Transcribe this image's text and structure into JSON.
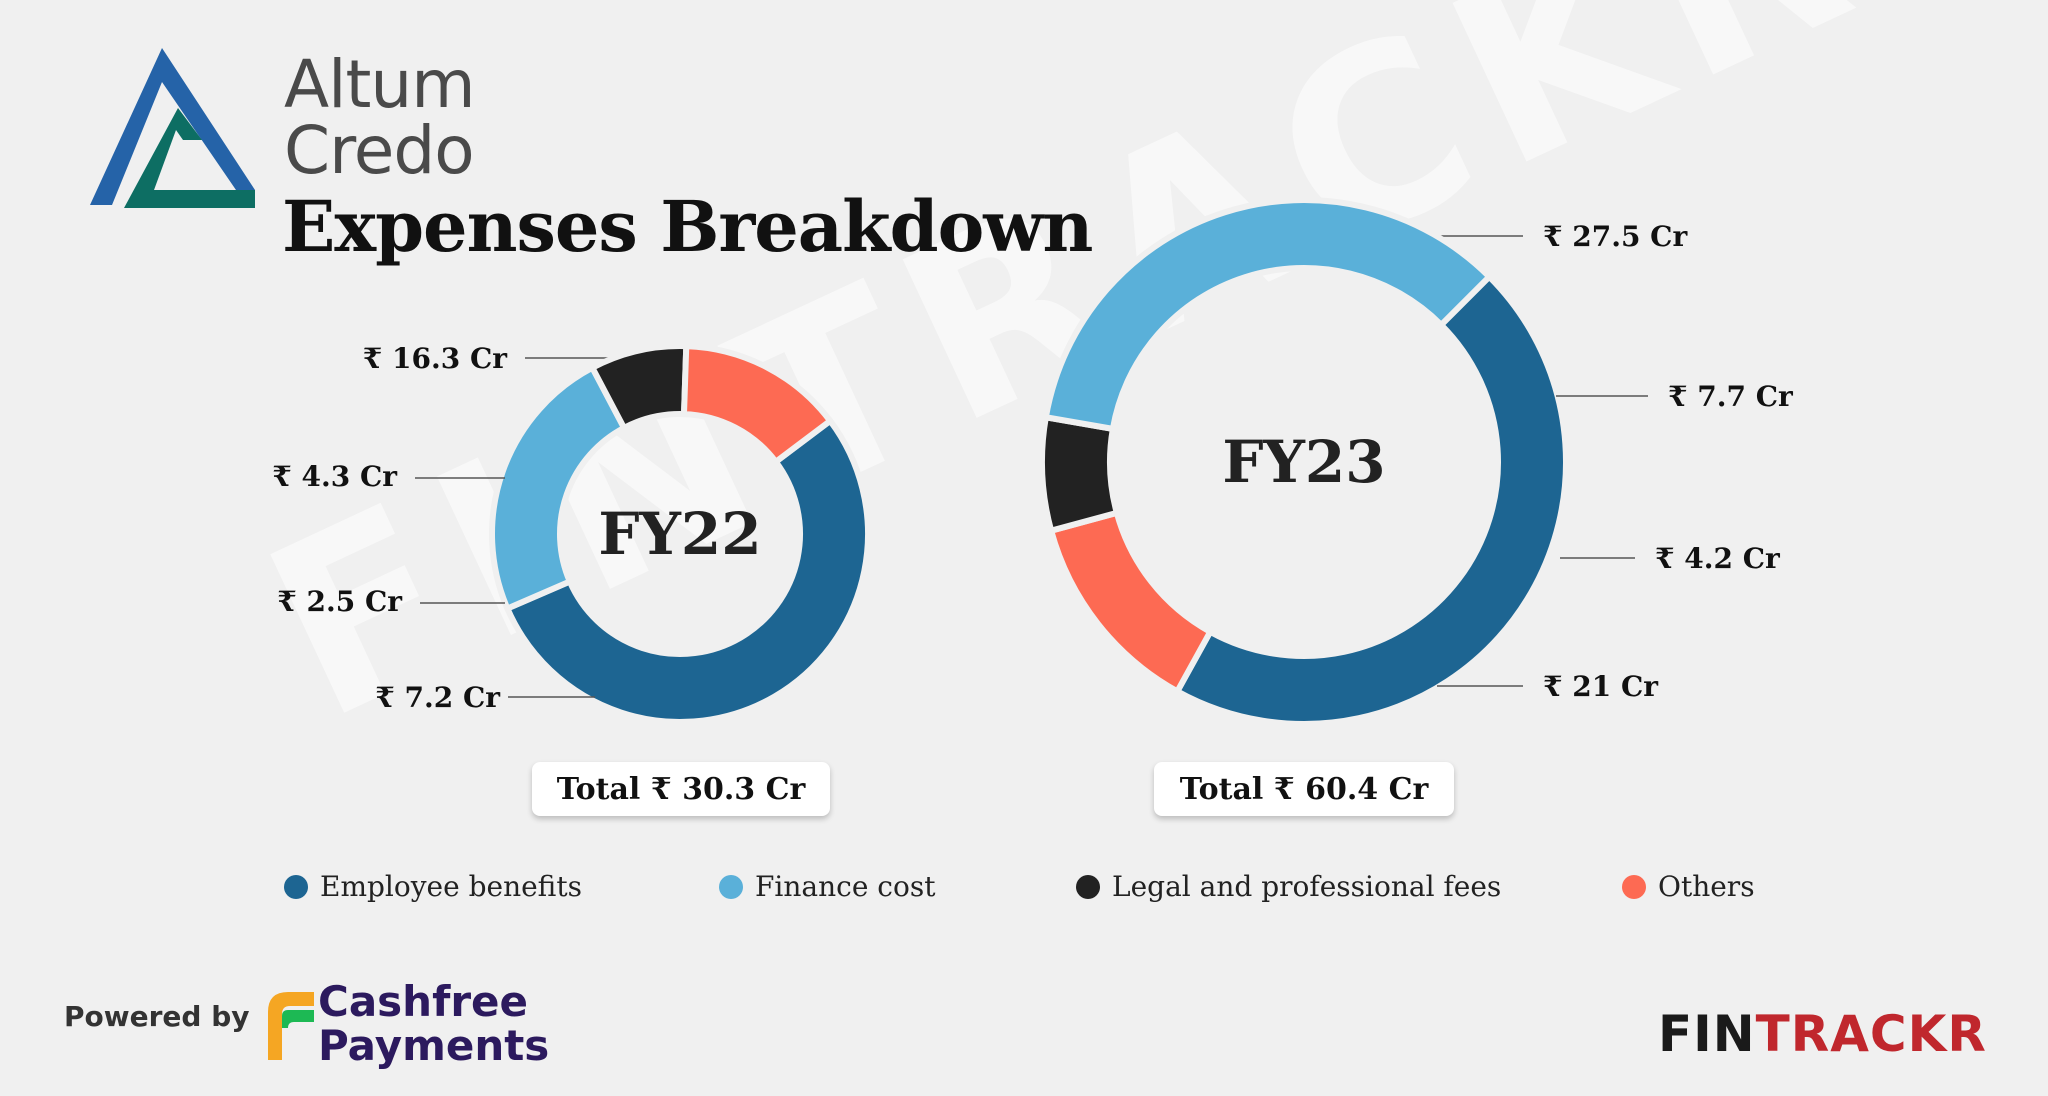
{
  "brand": {
    "line1": "Altum",
    "line2": "Credo"
  },
  "title": "Expenses Breakdown",
  "watermark": "FINTRACKR",
  "colors": {
    "employee": "#1d6592",
    "finance": "#5ab0d9",
    "legal": "#222222",
    "others": "#fd6a53",
    "logo_blue": "#2563a8",
    "logo_teal": "#0d6e63"
  },
  "chart_data": [
    {
      "type": "pie",
      "center_label": "FY22",
      "total_label": "Total ₹ 30.3 Cr",
      "slices": [
        {
          "name": "Employee benefits",
          "value": 16.3,
          "label": "₹ 16.3 Cr",
          "color": "#1d6592"
        },
        {
          "name": "Finance cost",
          "value": 7.2,
          "label": "₹ 7.2 Cr",
          "color": "#5ab0d9"
        },
        {
          "name": "Legal and professional fees",
          "value": 2.5,
          "label": "₹ 2.5 Cr",
          "color": "#222222"
        },
        {
          "name": "Others",
          "value": 4.3,
          "label": "₹ 4.3 Cr",
          "color": "#fd6a53"
        }
      ]
    },
    {
      "type": "pie",
      "center_label": "FY23",
      "total_label": "Total ₹ 60.4 Cr",
      "slices": [
        {
          "name": "Employee benefits",
          "value": 27.5,
          "label": "₹ 27.5 Cr",
          "color": "#1d6592"
        },
        {
          "name": "Others",
          "value": 7.7,
          "label": "₹ 7.7 Cr",
          "color": "#fd6a53"
        },
        {
          "name": "Legal and professional fees",
          "value": 4.2,
          "label": "₹ 4.2 Cr",
          "color": "#222222"
        },
        {
          "name": "Finance cost",
          "value": 21,
          "label": "₹ 21 Cr",
          "color": "#5ab0d9"
        }
      ]
    }
  ],
  "legend": [
    {
      "label": "Employee benefits",
      "color": "#1d6592"
    },
    {
      "label": "Finance cost",
      "color": "#5ab0d9"
    },
    {
      "label": "Legal and professional fees",
      "color": "#222222"
    },
    {
      "label": "Others",
      "color": "#fd6a53"
    }
  ],
  "footer": {
    "powered_by": "Powered by",
    "cashfree_line1": "Cashfree",
    "cashfree_line2": "Payments",
    "fintrackr_a": "FIN",
    "fintrackr_b": "TRACKR"
  }
}
